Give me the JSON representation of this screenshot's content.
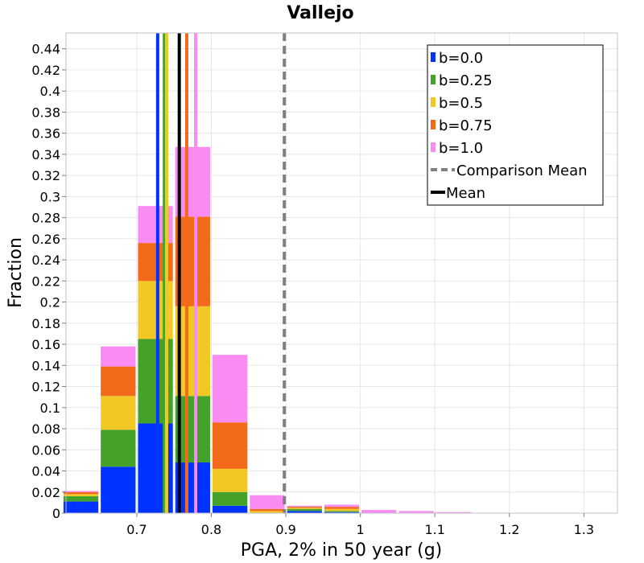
{
  "chart_data": {
    "type": "bar",
    "stacked": true,
    "title": "Vallejo",
    "xlabel": "PGA, 2% in 50 year (g)",
    "ylabel": "Fraction",
    "xlim": [
      0.605,
      1.345
    ],
    "ylim": [
      0,
      0.455
    ],
    "xticks": [
      0.7,
      0.8,
      0.9,
      1.0,
      1.1,
      1.2,
      1.3
    ],
    "xtick_labels": [
      "0.7",
      "0.8",
      "0.9",
      "1",
      "1.1",
      "1.2",
      "1.3"
    ],
    "yticks": [
      0,
      0.02,
      0.04,
      0.06,
      0.08,
      0.1,
      0.12,
      0.14,
      0.16,
      0.18,
      0.2,
      0.22,
      0.24,
      0.26,
      0.28,
      0.3,
      0.32,
      0.34,
      0.36,
      0.38,
      0.4,
      0.42,
      0.44
    ],
    "ytick_labels": [
      "0",
      "0.02",
      "0.04",
      "0.06",
      "0.08",
      "0.1",
      "0.12",
      "0.14",
      "0.16",
      "0.18",
      "0.2",
      "0.22",
      "0.24",
      "0.26",
      "0.28",
      "0.3",
      "0.32",
      "0.34",
      "0.36",
      "0.38",
      "0.4",
      "0.42",
      "0.44"
    ],
    "bin_width": 0.05,
    "bin_centers": [
      0.625,
      0.675,
      0.725,
      0.775,
      0.825,
      0.875,
      0.925,
      0.975,
      1.025,
      1.075,
      1.125
    ],
    "series": [
      {
        "name": "b=0.0",
        "color": "#0033ff",
        "values": [
          0.011,
          0.044,
          0.085,
          0.048,
          0.007,
          0.0,
          0.002,
          0.001,
          0.0,
          0.0,
          0.0
        ]
      },
      {
        "name": "b=0.25",
        "color": "#44a22a",
        "values": [
          0.005,
          0.035,
          0.08,
          0.063,
          0.013,
          0.0,
          0.002,
          0.001,
          0.0,
          0.0,
          0.0
        ]
      },
      {
        "name": "b=0.5",
        "color": "#f2c824",
        "values": [
          0.002,
          0.032,
          0.055,
          0.085,
          0.022,
          0.002,
          0.001,
          0.002,
          0.0,
          0.0,
          0.0
        ]
      },
      {
        "name": "b=0.75",
        "color": "#f26a1a",
        "values": [
          0.002,
          0.028,
          0.036,
          0.085,
          0.044,
          0.002,
          0.001,
          0.002,
          0.0,
          0.0,
          0.0
        ]
      },
      {
        "name": "b=1.0",
        "color": "#f98cf2",
        "values": [
          0.001,
          0.019,
          0.035,
          0.066,
          0.064,
          0.013,
          0.001,
          0.002,
          0.003,
          0.002,
          0.001
        ]
      }
    ],
    "mean_lines": [
      {
        "name": "b=0.0",
        "color": "#0033ff",
        "x": 0.728
      },
      {
        "name": "b=0.25",
        "color": "#44a22a",
        "x": 0.737
      },
      {
        "name": "b=0.5",
        "color": "#f2c824",
        "x": 0.74
      },
      {
        "name": "b=0.75",
        "color": "#f26a1a",
        "x": 0.767
      },
      {
        "name": "b=1.0",
        "color": "#f98cf2",
        "x": 0.779
      }
    ],
    "mean": {
      "label": "Mean",
      "x": 0.757,
      "color": "#000000"
    },
    "comparison_mean": {
      "label": "Comparison Mean",
      "x": 0.898,
      "color": "#7f7f7f"
    },
    "legend": {
      "position": "top-right",
      "entries": [
        {
          "label": "b=0.0",
          "color": "#0033ff",
          "style": "bar"
        },
        {
          "label": "b=0.25",
          "color": "#44a22a",
          "style": "bar"
        },
        {
          "label": "b=0.5",
          "color": "#f2c824",
          "style": "bar"
        },
        {
          "label": "b=0.75",
          "color": "#f26a1a",
          "style": "bar"
        },
        {
          "label": "b=1.0",
          "color": "#f98cf2",
          "style": "bar"
        },
        {
          "label": "Comparison Mean",
          "color": "#7f7f7f",
          "style": "dashed"
        },
        {
          "label": "Mean",
          "color": "#000000",
          "style": "solid"
        }
      ]
    },
    "grid": true
  }
}
